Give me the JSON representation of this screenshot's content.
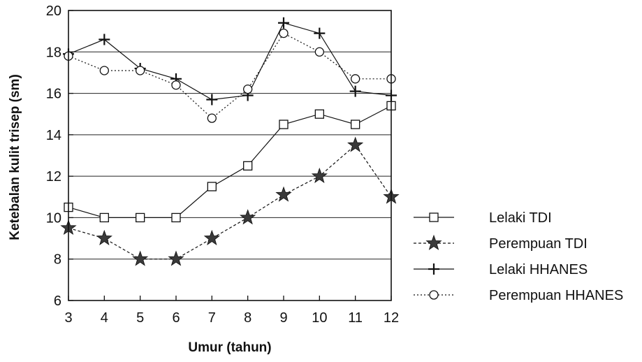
{
  "chart_data": {
    "type": "line",
    "title": "",
    "xlabel": "Umur (tahun)",
    "ylabel": "Ketebalan kulit trisep (sm)",
    "x": [
      3,
      4,
      5,
      6,
      7,
      8,
      9,
      10,
      11,
      12
    ],
    "xlim": [
      3,
      12
    ],
    "ylim": [
      6,
      20
    ],
    "yticks": [
      6,
      8,
      10,
      12,
      14,
      16,
      18,
      20
    ],
    "grid": "horizontal",
    "legend_position": "right",
    "series": [
      {
        "name": "Lelaki TDI",
        "marker": "square-open",
        "line": "solid",
        "values": [
          10.5,
          10.0,
          10.0,
          10.0,
          11.5,
          12.5,
          14.5,
          15.0,
          14.5,
          15.4
        ]
      },
      {
        "name": "Perempuan TDI",
        "marker": "star-filled",
        "line": "dashed",
        "values": [
          9.5,
          9.0,
          8.0,
          8.0,
          9.0,
          10.0,
          11.1,
          12.0,
          13.5,
          11.0
        ]
      },
      {
        "name": "Lelaki HHANES",
        "marker": "plus",
        "line": "solid",
        "values": [
          17.9,
          18.6,
          17.2,
          16.7,
          15.7,
          15.9,
          19.4,
          18.9,
          16.1,
          15.9
        ]
      },
      {
        "name": "Perempuan HHANES",
        "marker": "circle-open",
        "line": "dotted",
        "values": [
          17.8,
          17.1,
          17.1,
          16.4,
          14.8,
          16.2,
          18.9,
          18.0,
          16.7,
          16.7
        ]
      }
    ]
  }
}
